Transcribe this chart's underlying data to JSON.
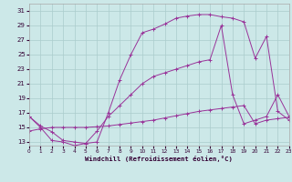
{
  "line1_x": [
    0,
    1,
    2,
    3,
    4,
    5,
    6,
    7,
    8,
    9,
    10,
    11,
    12,
    13,
    14,
    15,
    16,
    17,
    18,
    19,
    20,
    21,
    22,
    23
  ],
  "line1_y": [
    16.5,
    15.2,
    14.4,
    13.2,
    13.0,
    12.8,
    13.0,
    17.0,
    21.5,
    25.0,
    28.0,
    28.5,
    29.2,
    30.0,
    30.3,
    30.5,
    30.5,
    30.2,
    30.0,
    29.5,
    24.5,
    27.5,
    17.2,
    16.0
  ],
  "line2_x": [
    0,
    1,
    2,
    3,
    4,
    5,
    6,
    7,
    8,
    9,
    10,
    11,
    12,
    13,
    14,
    15,
    16,
    17,
    18,
    19,
    20,
    21,
    22,
    23
  ],
  "line2_y": [
    16.5,
    15.0,
    13.2,
    13.0,
    12.5,
    12.8,
    14.5,
    16.5,
    18.0,
    19.5,
    21.0,
    22.0,
    22.5,
    23.0,
    23.5,
    24.0,
    24.3,
    29.0,
    19.5,
    15.5,
    16.0,
    16.5,
    19.5,
    16.5
  ],
  "line3_x": [
    0,
    1,
    2,
    3,
    4,
    5,
    6,
    7,
    8,
    9,
    10,
    11,
    12,
    13,
    14,
    15,
    16,
    17,
    18,
    19,
    20,
    21,
    22,
    23
  ],
  "line3_y": [
    14.5,
    14.8,
    15.0,
    15.0,
    15.0,
    15.0,
    15.1,
    15.2,
    15.4,
    15.6,
    15.8,
    16.0,
    16.3,
    16.6,
    16.9,
    17.2,
    17.4,
    17.6,
    17.8,
    18.0,
    15.5,
    16.0,
    16.2,
    16.4
  ],
  "line_color": "#993399",
  "bg_color": "#cce8e8",
  "grid_color": "#aacccc",
  "xlabel": "Windchill (Refroidissement éolien,°C)",
  "xlim": [
    0,
    23
  ],
  "ylim": [
    12.5,
    32
  ],
  "yticks": [
    13,
    15,
    17,
    19,
    21,
    23,
    25,
    27,
    29,
    31
  ],
  "xticks": [
    0,
    1,
    2,
    3,
    4,
    5,
    6,
    7,
    8,
    9,
    10,
    11,
    12,
    13,
    14,
    15,
    16,
    17,
    18,
    19,
    20,
    21,
    22,
    23
  ]
}
